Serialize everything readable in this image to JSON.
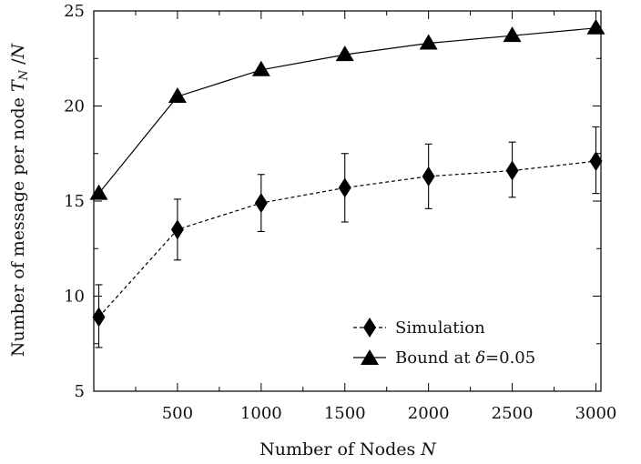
{
  "chart_data": {
    "type": "line",
    "xlabel": "Number of Nodes N",
    "ylabel": "Number of message per node T_N /N",
    "xlim": [
      0,
      3030
    ],
    "ylim": [
      5,
      25
    ],
    "x_ticks": [
      500,
      1000,
      1500,
      2000,
      2500,
      3000
    ],
    "x_tick_labels": [
      "500",
      "1000",
      "1500",
      "2000",
      "2500",
      "3000"
    ],
    "y_ticks": [
      5,
      10,
      15,
      20,
      25
    ],
    "y_tick_labels": [
      "5",
      "10",
      "15",
      "20",
      "25"
    ],
    "grid": false,
    "legend_position": "bottom-right",
    "series": [
      {
        "name": "Simulation",
        "marker": "diamond",
        "line_style": "dashed",
        "color": "#000000",
        "x": [
          30,
          500,
          1000,
          1500,
          2000,
          2500,
          3000
        ],
        "y": [
          8.9,
          13.5,
          14.9,
          15.7,
          16.3,
          16.6,
          17.1
        ],
        "error_low": [
          7.3,
          11.9,
          13.4,
          13.9,
          14.6,
          15.2,
          15.4
        ],
        "error_high": [
          10.6,
          15.1,
          16.4,
          17.5,
          18.0,
          18.1,
          18.9
        ]
      },
      {
        "name": "Bound at δ=0.05",
        "marker": "triangle",
        "line_style": "solid",
        "color": "#000000",
        "x": [
          30,
          500,
          1000,
          1500,
          2000,
          2500,
          3000
        ],
        "y": [
          15.4,
          20.5,
          21.9,
          22.7,
          23.3,
          23.7,
          24.1
        ]
      }
    ]
  }
}
